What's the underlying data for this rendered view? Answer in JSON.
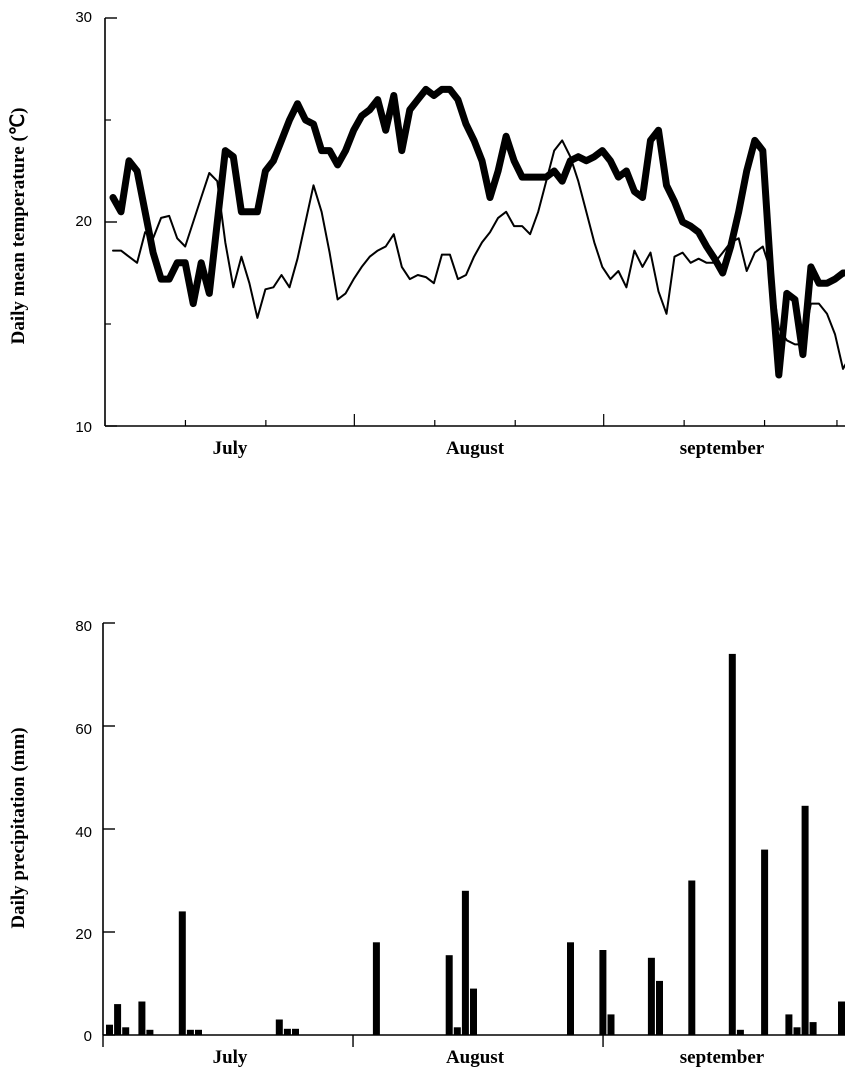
{
  "chart_data": [
    {
      "type": "line",
      "ylabel": "Daily mean temperature (℃)",
      "ylim": [
        10,
        30
      ],
      "yticks": [
        "10",
        "20",
        "30"
      ],
      "month_labels": [
        "July",
        "August",
        "september"
      ],
      "x_range": [
        0,
        91
      ],
      "grid": false,
      "series": [
        {
          "style": "thick",
          "color": "#000000",
          "values": [
            21.2,
            20.5,
            23.0,
            22.5,
            20.5,
            18.5,
            17.2,
            17.2,
            18.0,
            18.0,
            16.0,
            18.0,
            16.5,
            20.0,
            23.5,
            23.2,
            20.5,
            20.5,
            20.5,
            22.5,
            23.0,
            24.0,
            25.0,
            25.8,
            25.0,
            24.8,
            23.5,
            23.5,
            22.8,
            23.5,
            24.5,
            25.2,
            25.5,
            26.0,
            24.5,
            26.2,
            23.5,
            25.5,
            26.0,
            26.5,
            26.2,
            26.5,
            26.5,
            26.0,
            24.8,
            24.0,
            23.0,
            21.2,
            22.5,
            24.2,
            23.0,
            22.2,
            22.2,
            22.2,
            22.2,
            22.5,
            22.0,
            23.0,
            23.2,
            23.0,
            23.2,
            23.5,
            23.0,
            22.2,
            22.5,
            21.5,
            21.2,
            24.0,
            24.5,
            21.8,
            21.0,
            20.0,
            19.8,
            19.5,
            18.8,
            18.2,
            17.5,
            18.8,
            20.5,
            22.5,
            24.0,
            23.5,
            17.5,
            12.5,
            16.5,
            16.2,
            13.5,
            17.8,
            17.0,
            17.0,
            17.2,
            17.5,
            17.5,
            17.0,
            14.8
          ]
        },
        {
          "style": "thin",
          "color": "#000000",
          "values": [
            18.6,
            18.6,
            18.3,
            18.0,
            19.5,
            19.2,
            20.2,
            20.3,
            19.2,
            18.8,
            20.0,
            21.2,
            22.4,
            22.0,
            19.0,
            16.8,
            18.3,
            17.0,
            15.3,
            16.7,
            16.8,
            17.4,
            16.8,
            18.2,
            20.0,
            21.8,
            20.5,
            18.5,
            16.2,
            16.5,
            17.2,
            17.8,
            18.3,
            18.6,
            18.8,
            19.4,
            17.8,
            17.2,
            17.4,
            17.3,
            17.0,
            18.4,
            18.4,
            17.2,
            17.4,
            18.3,
            19.0,
            19.5,
            20.2,
            20.5,
            19.8,
            19.8,
            19.4,
            20.5,
            22.0,
            23.5,
            24.0,
            23.2,
            22.0,
            20.5,
            19.0,
            17.8,
            17.2,
            17.6,
            16.8,
            18.6,
            17.8,
            18.5,
            16.6,
            15.5,
            18.3,
            18.5,
            18.0,
            18.2,
            18.0,
            18.0,
            18.5,
            19.0,
            19.2,
            17.6,
            18.5,
            18.8,
            17.6,
            14.8,
            14.2,
            14.0,
            14.0,
            16.0,
            16.0,
            15.5,
            14.5,
            12.8,
            13.5,
            14.0,
            14.5
          ]
        }
      ]
    },
    {
      "type": "bar",
      "ylabel": "Daily precipitation (mm)",
      "ylim": [
        0,
        80
      ],
      "yticks": [
        "0",
        "20",
        "40",
        "60",
        "80"
      ],
      "month_labels": [
        "July",
        "August",
        "september"
      ],
      "x_range": [
        0,
        92
      ],
      "grid": false,
      "bars": [
        {
          "day": 1,
          "value": 2.0
        },
        {
          "day": 2,
          "value": 6.0
        },
        {
          "day": 3,
          "value": 1.5
        },
        {
          "day": 5,
          "value": 6.5
        },
        {
          "day": 6,
          "value": 1.0
        },
        {
          "day": 10,
          "value": 24.0
        },
        {
          "day": 11,
          "value": 1.0
        },
        {
          "day": 12,
          "value": 1.0
        },
        {
          "day": 22,
          "value": 3.0
        },
        {
          "day": 23,
          "value": 1.2
        },
        {
          "day": 24,
          "value": 1.2
        },
        {
          "day": 34,
          "value": 18.0
        },
        {
          "day": 43,
          "value": 15.5
        },
        {
          "day": 44,
          "value": 1.5
        },
        {
          "day": 45,
          "value": 28.0
        },
        {
          "day": 46,
          "value": 9.0
        },
        {
          "day": 58,
          "value": 18.0
        },
        {
          "day": 62,
          "value": 16.5
        },
        {
          "day": 63,
          "value": 4.0
        },
        {
          "day": 68,
          "value": 15.0
        },
        {
          "day": 69,
          "value": 10.5
        },
        {
          "day": 73,
          "value": 30.0
        },
        {
          "day": 78,
          "value": 74.0
        },
        {
          "day": 79,
          "value": 1.0
        },
        {
          "day": 82,
          "value": 36.0
        },
        {
          "day": 85,
          "value": 4.0
        },
        {
          "day": 86,
          "value": 1.5
        },
        {
          "day": 87,
          "value": 44.5
        },
        {
          "day": 88,
          "value": 2.5
        },
        {
          "day": 92,
          "value": 6.5
        }
      ]
    }
  ]
}
